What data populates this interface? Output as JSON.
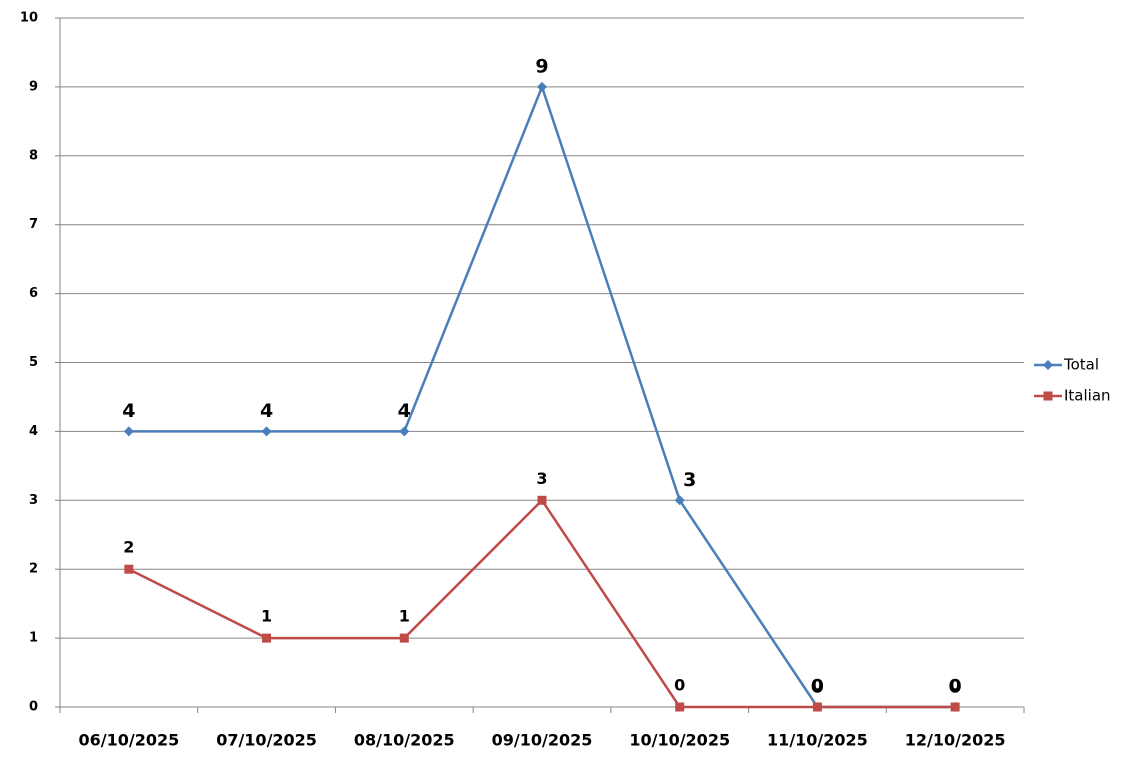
{
  "chart_data": {
    "type": "line",
    "categories": [
      "06/10/2025",
      "07/10/2025",
      "08/10/2025",
      "09/10/2025",
      "10/10/2025",
      "11/10/2025",
      "12/10/2025"
    ],
    "series": [
      {
        "name": "Total",
        "color": "#4a7ebb",
        "marker": "diamond",
        "values": [
          4,
          4,
          4,
          9,
          3,
          0,
          0
        ]
      },
      {
        "name": "Italian",
        "color": "#be4b48",
        "marker": "square",
        "values": [
          2,
          1,
          1,
          3,
          0,
          0,
          0
        ]
      }
    ],
    "ylim": [
      0,
      10
    ],
    "yticks": [
      0,
      1,
      2,
      3,
      4,
      5,
      6,
      7,
      8,
      9,
      10
    ],
    "grid": true,
    "legend": "right"
  }
}
